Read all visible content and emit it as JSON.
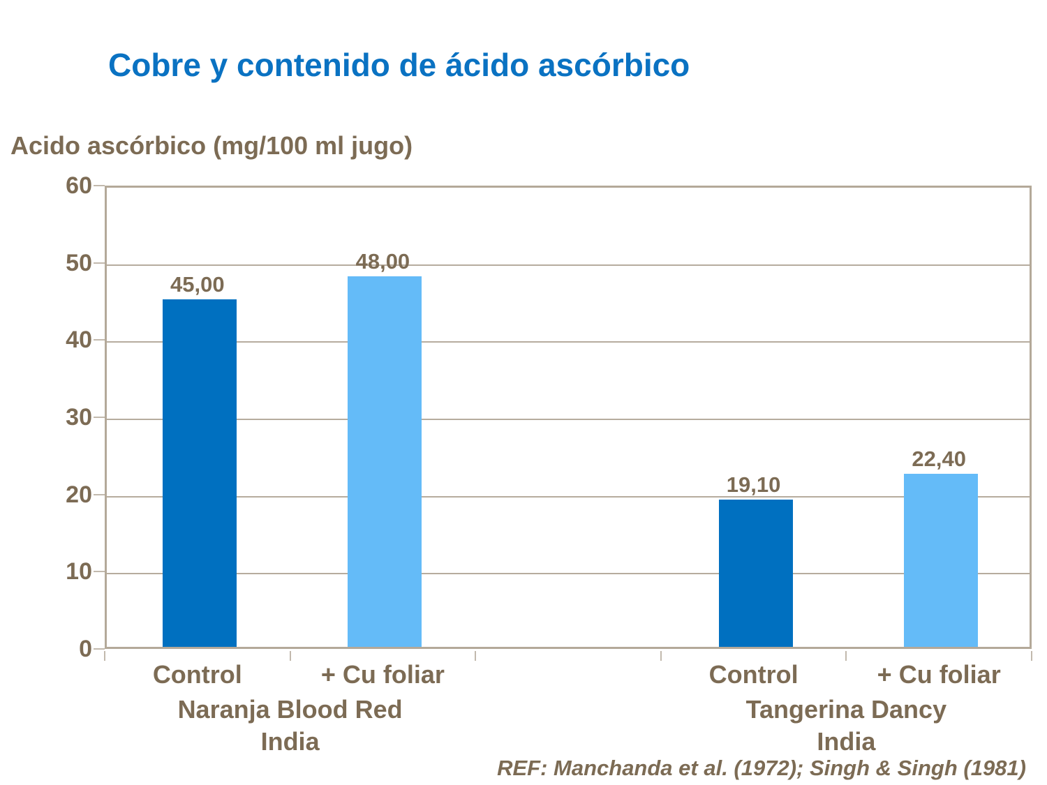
{
  "slide": {
    "title": "Cobre y contenido de ácido ascórbico"
  },
  "colors": {
    "title_blue": "#0a72c2",
    "text_brown": "#7c6b54",
    "frame": "#b4a999",
    "gridline": "#b6ac9e",
    "tick": "#c2b9ad",
    "bar_control": "#0070c0",
    "bar_cu_foliar": "#64bbf8"
  },
  "chart_data": {
    "type": "bar",
    "title": "Cobre y contenido de ácido ascórbico",
    "ylabel": "Acido ascórbico (mg/100 ml jugo)",
    "xlabel": "",
    "ylim": [
      0,
      60
    ],
    "yticks": [
      0,
      10,
      20,
      30,
      40,
      50,
      60
    ],
    "grid": "horizontal",
    "legend_position": "none",
    "groups": [
      {
        "group_label_lines": [
          "Naranja Blood Red",
          "India"
        ],
        "bars": [
          {
            "category": "Control",
            "value": 45.0,
            "value_label": "45,00",
            "color": "#0070c0"
          },
          {
            "category": "+ Cu foliar",
            "value": 48.0,
            "value_label": "48,00",
            "color": "#64bbf8"
          }
        ]
      },
      {
        "group_label_lines": [
          "Tangerina Dancy",
          "India"
        ],
        "bars": [
          {
            "category": "Control",
            "value": 19.1,
            "value_label": "19,10",
            "color": "#0070c0"
          },
          {
            "category": "+ Cu foliar",
            "value": 22.4,
            "value_label": "22,40",
            "color": "#64bbf8"
          }
        ]
      }
    ]
  },
  "reference": "REF: Manchanda et al. (1972); Singh & Singh (1981)"
}
